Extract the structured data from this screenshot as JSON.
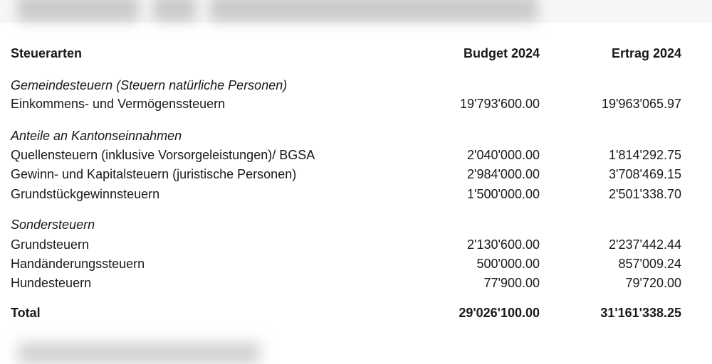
{
  "header": {
    "label": "Steuerarten",
    "col1": "Budget 2024",
    "col2": "Ertrag 2024"
  },
  "groups": [
    {
      "title": "Gemeindesteuern (Steuern natürliche Personen)",
      "rows": [
        {
          "label": "Einkommens- und Vermögenssteuern",
          "budget": "19'793'600.00",
          "ertrag": "19'963'065.97"
        }
      ]
    },
    {
      "title": "Anteile an Kantonseinnahmen",
      "rows": [
        {
          "label": "Quellensteuern (inklusive Vorsorgeleistungen)/ BGSA",
          "budget": "2'040'000.00",
          "ertrag": "1'814'292.75"
        },
        {
          "label": "Gewinn- und Kapitalsteuern (juristische Personen)",
          "budget": "2'984'000.00",
          "ertrag": "3'708'469.15"
        },
        {
          "label": "Grundstückgewinnsteuern",
          "budget": "1'500'000.00",
          "ertrag": "2'501'338.70"
        }
      ]
    },
    {
      "title": "Sondersteuern",
      "rows": [
        {
          "label": "Grundsteuern",
          "budget": "2'130'600.00",
          "ertrag": "2'237'442.44"
        },
        {
          "label": "Handänderungssteuern",
          "budget": "500'000.00",
          "ertrag": "857'009.24"
        },
        {
          "label": "Hundesteuern",
          "budget": "77'900.00",
          "ertrag": "79'720.00"
        }
      ]
    }
  ],
  "total": {
    "label": "Total",
    "budget": "29'026'100.00",
    "ertrag": "31'161'338.25"
  }
}
